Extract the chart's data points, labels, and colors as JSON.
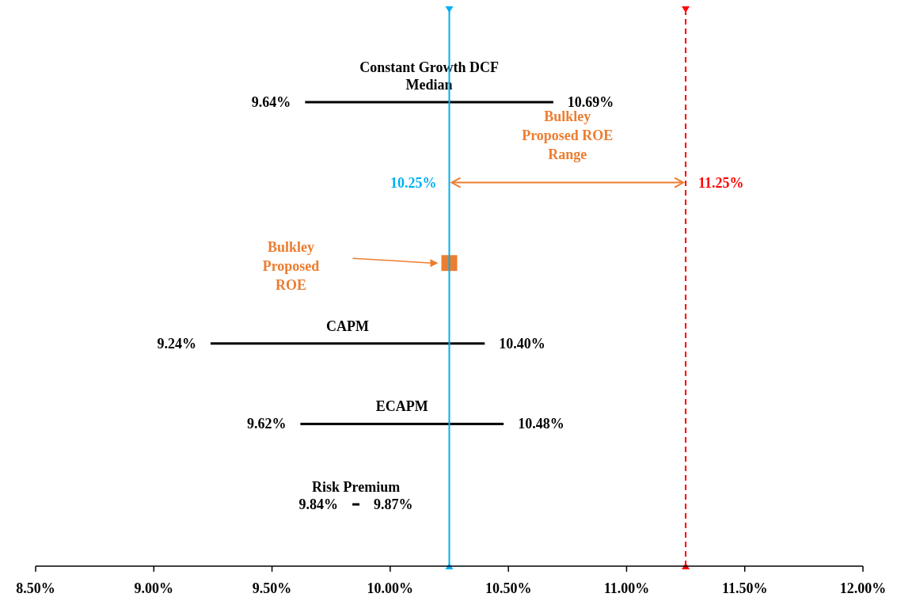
{
  "chart_data": {
    "type": "bar",
    "orientation": "horizontal",
    "categories": [
      "Constant Growth DCF Median",
      null,
      null,
      "CAPM",
      "ECAPM",
      "Risk Premium"
    ],
    "series": [
      {
        "type": "bar",
        "color": "#000000",
        "values": [
          1.05,
          null,
          null,
          1.16,
          0.86,
          0.03
        ],
        "base": [
          9.64,
          null,
          null,
          9.24,
          9.62,
          9.84
        ]
      },
      {
        "type": "scatter",
        "name": "Bulkley Proposed ROE",
        "color": "#ed7d31",
        "marker": "square",
        "values": [
          null,
          null,
          10.25,
          null,
          null,
          null
        ]
      }
    ],
    "xlim": [
      8.5,
      12
    ],
    "xticks": [
      {
        "value": 8.5,
        "label": "8.50%"
      },
      {
        "value": 9,
        "label": "9.00%"
      },
      {
        "value": 9.5,
        "label": "9.50%"
      },
      {
        "value": 10,
        "label": "10.00%"
      },
      {
        "value": 10.5,
        "label": "10.50%"
      },
      {
        "value": 11,
        "label": "11.00%"
      },
      {
        "value": 11.5,
        "label": "11.50%"
      },
      {
        "value": 12,
        "label": "12.00%"
      }
    ],
    "ref_lines": [
      {
        "axis": "x",
        "value": 10.25,
        "label": "10.25%",
        "color": "#00b0f0",
        "line_style": "solid"
      },
      {
        "axis": "x",
        "value": 11.25,
        "label": "11.25%",
        "color": "#ff0000",
        "line_style": "dashed"
      }
    ],
    "annotations": [
      "9.64%",
      "10.69%",
      "9.24%",
      "10.40%",
      "9.62%",
      "10.48%",
      "9.84%",
      "9.87%",
      "Bulkley Proposed ROE Range"
    ],
    "grid": false,
    "legend": false
  }
}
